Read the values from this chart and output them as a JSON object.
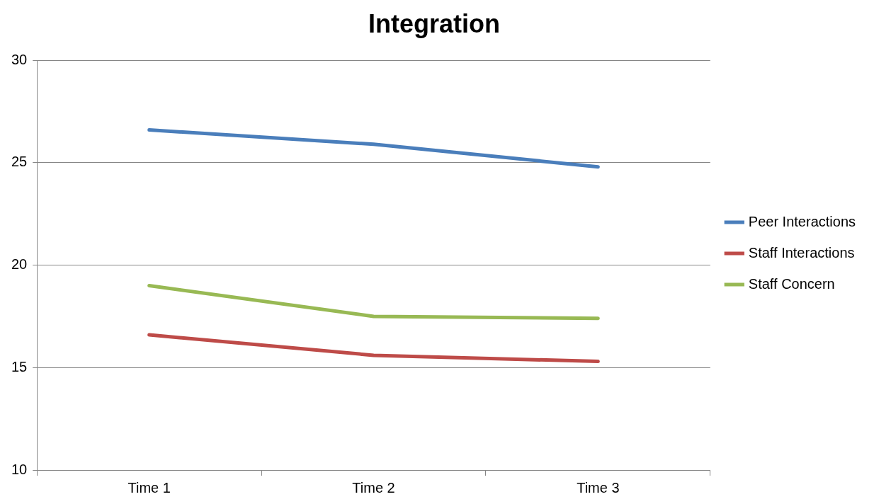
{
  "chart_data": {
    "type": "line",
    "title": "Integration",
    "categories": [
      "Time 1",
      "Time 2",
      "Time 3"
    ],
    "series": [
      {
        "name": "Peer Interactions",
        "color": "#4a7ebb",
        "values": [
          26.6,
          25.9,
          24.8
        ]
      },
      {
        "name": "Staff Interactions",
        "color": "#be4b48",
        "values": [
          16.6,
          15.6,
          15.3
        ]
      },
      {
        "name": "Staff Concern",
        "color": "#98b954",
        "values": [
          19.0,
          17.5,
          17.4
        ]
      }
    ],
    "ylim": [
      10,
      30
    ],
    "yticks": [
      10,
      15,
      20,
      25,
      30
    ],
    "grid": "y",
    "legend": "right",
    "marker": "none",
    "line_style": "solid"
  }
}
